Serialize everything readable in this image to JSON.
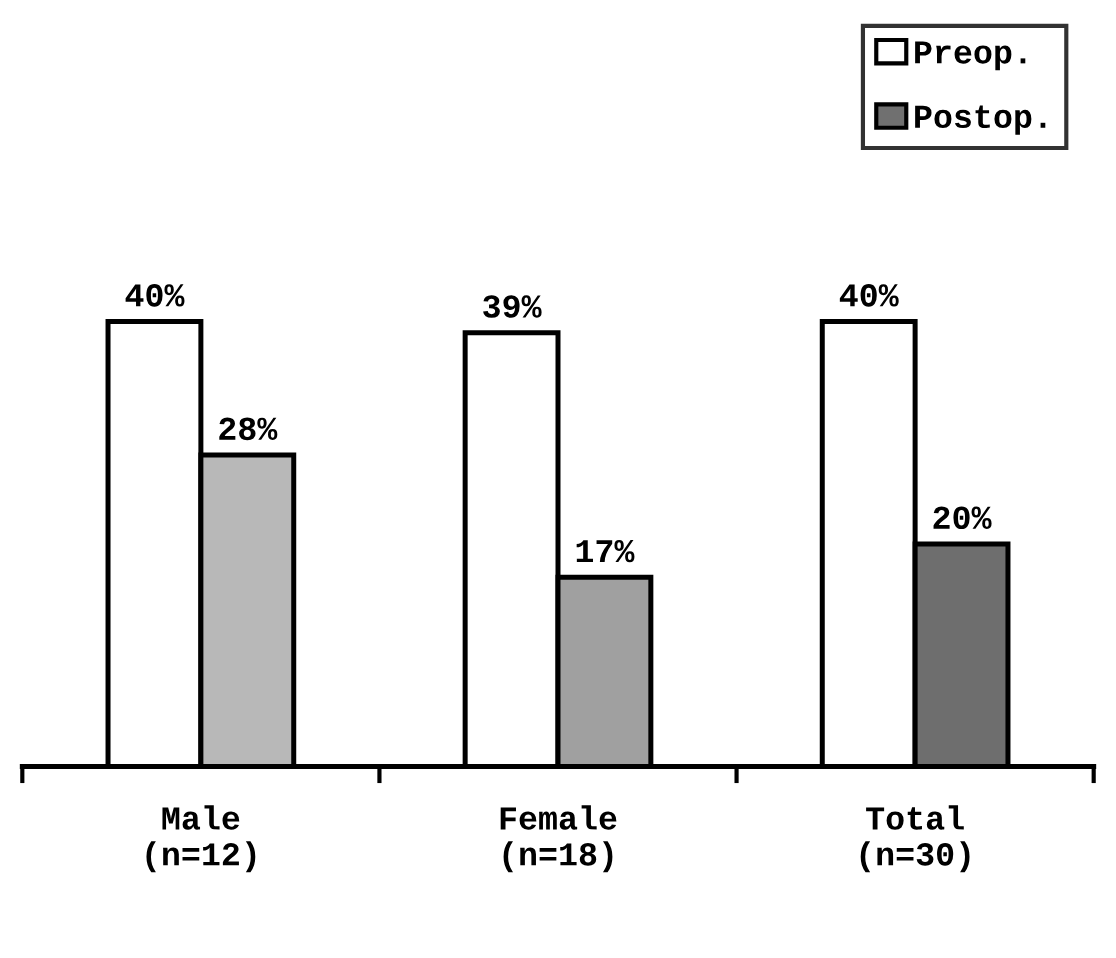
{
  "chart_data": {
    "type": "bar",
    "categories": [
      "Male\n(n=12)",
      "Female\n(n=18)",
      "Total\n(n=30)"
    ],
    "series": [
      {
        "name": "Preop.",
        "color": "#ffffff",
        "values": [
          40,
          39,
          40
        ],
        "value_labels": [
          "40%",
          "39%",
          "40%"
        ]
      },
      {
        "name": "Postop.",
        "color": "#707070",
        "colors": [
          "#b8b8b8",
          "#a0a0a0",
          "#6e6e6e"
        ],
        "values": [
          28,
          17,
          20
        ],
        "value_labels": [
          "28%",
          "17%",
          "20%"
        ]
      }
    ],
    "legend": "top right",
    "grid": false
  }
}
